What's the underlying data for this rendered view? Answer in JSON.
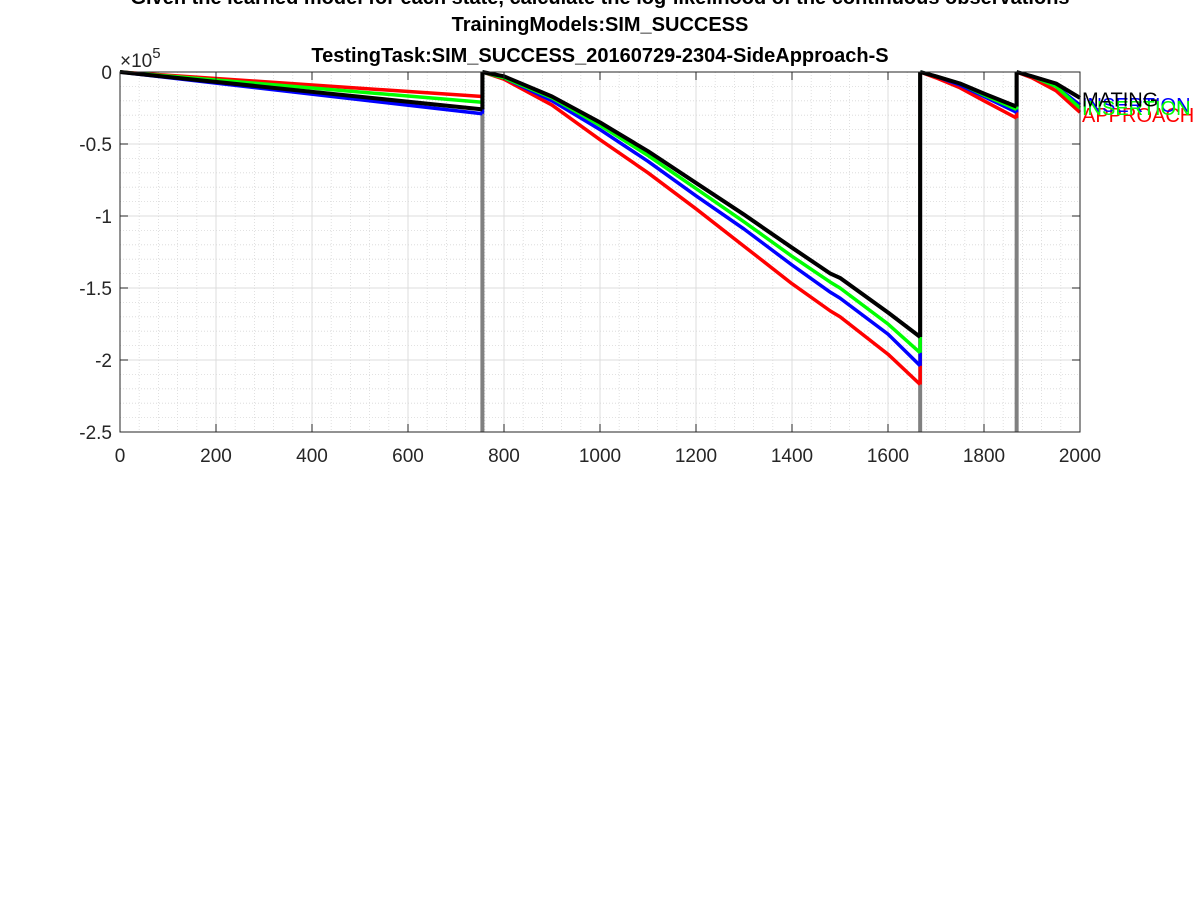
{
  "chart_data": {
    "type": "line",
    "title": [
      "Given the learned model for each state, calculate the log-likelihood of the continuous observations",
      "TrainingModels:SIM_SUCCESS",
      "TestingTask:SIM_SUCCESS_20160729-2304-SideApproach-S"
    ],
    "xlabel": "",
    "ylabel": "",
    "xlim": [
      0,
      2000
    ],
    "ylim": [
      -250000,
      0
    ],
    "x_ticks": [
      0,
      200,
      400,
      600,
      800,
      1000,
      1200,
      1400,
      1600,
      1800,
      2000
    ],
    "x_tick_labels": [
      "0",
      "200",
      "400",
      "600",
      "800",
      "1000",
      "1200",
      "1400",
      "1600",
      "1800",
      "2000"
    ],
    "y_ticks": [
      0,
      -50000,
      -100000,
      -150000,
      -200000,
      -250000
    ],
    "y_tick_labels": [
      "0",
      "-0.5",
      "-1",
      "-1.5",
      "-2",
      "-2.5"
    ],
    "y_exponent_base": "×10",
    "y_exponent_power": "5",
    "grid": true,
    "minor_grid": true,
    "vertical_markers": {
      "color": "#808080",
      "x": [
        755,
        1667,
        1868
      ]
    },
    "segments": [
      {
        "start": 0,
        "end": 755
      },
      {
        "start": 755,
        "end": 1667
      },
      {
        "start": 1667,
        "end": 1868
      },
      {
        "start": 1868,
        "end": 2000
      }
    ],
    "series": [
      {
        "name": "APPROACH",
        "color": "#ff0000",
        "points": [
          [
            [
              0,
              0
            ],
            [
              755,
              -17000
            ]
          ],
          [
            [
              755,
              0
            ],
            [
              800,
              -5000
            ],
            [
              900,
              -23000
            ],
            [
              1000,
              -47000
            ],
            [
              1100,
              -70000
            ],
            [
              1200,
              -95000
            ],
            [
              1300,
              -121000
            ],
            [
              1400,
              -147000
            ],
            [
              1480,
              -166000
            ],
            [
              1500,
              -170000
            ],
            [
              1600,
              -196000
            ],
            [
              1667,
              -217000
            ]
          ],
          [
            [
              1667,
              0
            ],
            [
              1700,
              -4000
            ],
            [
              1750,
              -11000
            ],
            [
              1800,
              -20000
            ],
            [
              1868,
              -32000
            ]
          ],
          [
            [
              1868,
              0
            ],
            [
              1900,
              -4000
            ],
            [
              1950,
              -13000
            ],
            [
              2000,
              -28000
            ]
          ]
        ]
      },
      {
        "name": "INSERTION",
        "color": "#0000ff",
        "points": [
          [
            [
              0,
              0
            ],
            [
              755,
              -29000
            ]
          ],
          [
            [
              755,
              0
            ],
            [
              800,
              -4000
            ],
            [
              900,
              -20000
            ],
            [
              1000,
              -40000
            ],
            [
              1100,
              -62000
            ],
            [
              1200,
              -86000
            ],
            [
              1300,
              -109000
            ],
            [
              1400,
              -134000
            ],
            [
              1480,
              -153000
            ],
            [
              1500,
              -157000
            ],
            [
              1600,
              -182000
            ],
            [
              1667,
              -204000
            ]
          ],
          [
            [
              1667,
              0
            ],
            [
              1700,
              -3000
            ],
            [
              1750,
              -9000
            ],
            [
              1800,
              -17000
            ],
            [
              1868,
              -28000
            ]
          ],
          [
            [
              1868,
              0
            ],
            [
              1900,
              -3000
            ],
            [
              1950,
              -10000
            ],
            [
              2000,
              -23000
            ]
          ]
        ]
      },
      {
        "name": "INSERTION",
        "color": "#00ff00",
        "points": [
          [
            [
              0,
              0
            ],
            [
              755,
              -21000
            ]
          ],
          [
            [
              755,
              0
            ],
            [
              800,
              -4000
            ],
            [
              900,
              -18000
            ],
            [
              1000,
              -37000
            ],
            [
              1100,
              -58000
            ],
            [
              1200,
              -81000
            ],
            [
              1300,
              -104000
            ],
            [
              1400,
              -128000
            ],
            [
              1480,
              -146000
            ],
            [
              1500,
              -150000
            ],
            [
              1600,
              -175000
            ],
            [
              1667,
              -195000
            ]
          ],
          [
            [
              1667,
              0
            ],
            [
              1700,
              -3000
            ],
            [
              1750,
              -8000
            ],
            [
              1800,
              -16000
            ],
            [
              1868,
              -26000
            ]
          ],
          [
            [
              1868,
              0
            ],
            [
              1900,
              -3000
            ],
            [
              1950,
              -10000
            ],
            [
              2000,
              -25000
            ]
          ]
        ]
      },
      {
        "name": "MATING",
        "color": "#000000",
        "points": [
          [
            [
              0,
              0
            ],
            [
              755,
              -26000
            ]
          ],
          [
            [
              755,
              0
            ],
            [
              800,
              -3000
            ],
            [
              900,
              -17000
            ],
            [
              1000,
              -35000
            ],
            [
              1100,
              -55000
            ],
            [
              1200,
              -77000
            ],
            [
              1300,
              -99000
            ],
            [
              1400,
              -122000
            ],
            [
              1480,
              -140000
            ],
            [
              1500,
              -143000
            ],
            [
              1600,
              -167000
            ],
            [
              1667,
              -184000
            ]
          ],
          [
            [
              1667,
              0
            ],
            [
              1700,
              -3000
            ],
            [
              1750,
              -8000
            ],
            [
              1800,
              -15000
            ],
            [
              1868,
              -24000
            ]
          ],
          [
            [
              1868,
              0
            ],
            [
              1900,
              -3000
            ],
            [
              1950,
              -8000
            ],
            [
              2000,
              -18000
            ]
          ]
        ]
      }
    ],
    "end_labels": [
      {
        "text": "APPROACH",
        "color": "#ff0000",
        "y": -30000
      },
      {
        "text": "INSERTION",
        "color": "#0000ff",
        "y": -23000
      },
      {
        "text": "INSERTION",
        "color": "#00ff00",
        "y": -25000
      },
      {
        "text": "MATING",
        "color": "#000000",
        "y": -19000
      }
    ]
  }
}
